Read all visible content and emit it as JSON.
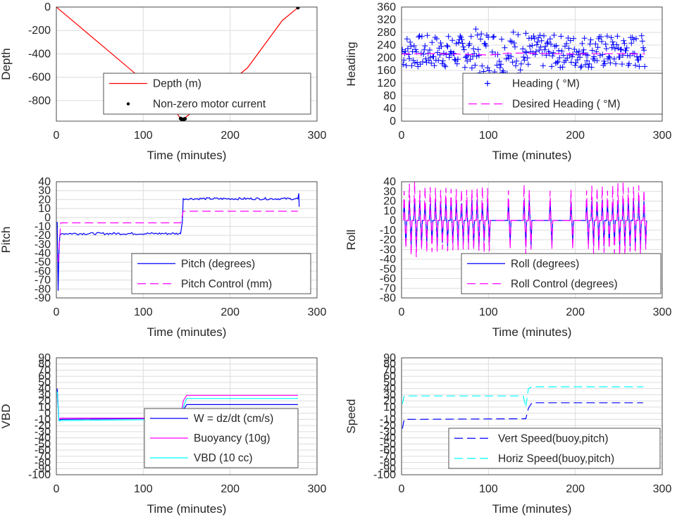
{
  "chart_data": [
    {
      "type": "line",
      "ylabel": "Depth",
      "xlabel": "Time (minutes)",
      "xlim": [
        0,
        300
      ],
      "ylim": [
        -975,
        0
      ],
      "xticks": [
        0,
        100,
        200,
        300
      ],
      "yticks": [
        0,
        -200,
        -400,
        -600,
        -800
      ],
      "legend_position": "bottom-center",
      "series": [
        {
          "name": "Depth (m)",
          "style": "solid",
          "color": "#ff0000",
          "x": [
            0,
            72,
            110,
            130,
            143,
            146,
            150,
            180,
            220,
            260,
            278
          ],
          "y": [
            0,
            -450,
            -690,
            -810,
            -955,
            -960,
            -935,
            -760,
            -520,
            -115,
            -5
          ]
        },
        {
          "name": "Non-zero motor current",
          "style": "dots",
          "color": "#000000",
          "x": [
            143,
            144,
            145,
            146,
            147,
            148,
            278
          ],
          "y": [
            -952,
            -958,
            -960,
            -960,
            -958,
            -955,
            -5
          ]
        }
      ]
    },
    {
      "type": "line",
      "ylabel": "Heading",
      "xlabel": "Time (minutes)",
      "xlim": [
        0,
        300
      ],
      "ylim": [
        0,
        360
      ],
      "xticks": [
        0,
        100,
        200,
        300
      ],
      "yticks": [
        0,
        40,
        80,
        120,
        160,
        200,
        240,
        280,
        320,
        360
      ],
      "legend_position": "bottom-center",
      "series": [
        {
          "name": "Heading (  °M)",
          "style": "plus",
          "color": "#0000ff",
          "x_range": [
            0,
            280
          ],
          "center": 212,
          "spread": [
            -45,
            60
          ]
        },
        {
          "name": "Desired Heading (    °M)",
          "style": "dashed",
          "color": "#ff00ff",
          "x": [
            0,
            40,
            90,
            100,
            120,
            140,
            160,
            200,
            240,
            280
          ],
          "y": [
            212,
            213,
            210,
            208,
            214,
            215,
            213,
            212,
            213,
            212
          ]
        }
      ]
    },
    {
      "type": "line",
      "ylabel": "Pitch",
      "xlabel": "Time (minutes)",
      "xlim": [
        0,
        300
      ],
      "ylim": [
        -90,
        40
      ],
      "xticks": [
        0,
        100,
        200,
        300
      ],
      "yticks": [
        40,
        30,
        20,
        10,
        0,
        -10,
        -20,
        -30,
        -40,
        -50,
        -60,
        -70,
        -80,
        -90
      ],
      "legend_position": "bottom-right",
      "series": [
        {
          "name": "Pitch (degrees)",
          "style": "solid",
          "color": "#0000ff",
          "x": [
            1,
            2,
            3,
            4,
            6,
            143,
            145,
            146,
            278,
            279,
            279.5
          ],
          "y": [
            -5,
            -82,
            -40,
            -20,
            -18,
            -18,
            -5,
            21,
            21,
            27,
            12
          ]
        },
        {
          "name": "Pitch Control (mm)",
          "style": "dashed",
          "color": "#ff00ff",
          "x": [
            2,
            5,
            10,
            143,
            146,
            150,
            278
          ],
          "y": [
            -50,
            -6,
            -6,
            -6,
            7,
            7,
            7
          ]
        }
      ]
    },
    {
      "type": "line",
      "ylabel": "Roll",
      "xlabel": "Time (minutes)",
      "xlim": [
        0,
        300
      ],
      "ylim": [
        -80,
        40
      ],
      "xticks": [
        0,
        100,
        200,
        300
      ],
      "yticks": [
        40,
        30,
        20,
        10,
        0,
        -10,
        -20,
        -30,
        -40,
        -50,
        -60,
        -70,
        -80
      ],
      "legend_position": "bottom-right",
      "series": [
        {
          "name": "Roll (degrees)",
          "style": "solid",
          "color": "#0000ff",
          "oscillation": {
            "x_range": [
              0,
              280
            ],
            "high": 22,
            "low": -28
          }
        },
        {
          "name": "Roll Control (degrees)",
          "style": "dashed",
          "color": "#ff00ff",
          "oscillation": {
            "x_range": [
              0,
              280
            ],
            "high": 40,
            "low": -38
          }
        }
      ]
    },
    {
      "type": "line",
      "ylabel": "VBD",
      "xlabel": "Time (minutes)",
      "xlim": [
        0,
        300
      ],
      "ylim": [
        -100,
        90
      ],
      "xticks": [
        0,
        100,
        200,
        300
      ],
      "yticks": [
        90,
        80,
        70,
        60,
        50,
        40,
        30,
        20,
        10,
        0,
        -10,
        -20,
        -30,
        -40,
        -50,
        -60,
        -70,
        -80,
        -90,
        -100
      ],
      "legend_position": "bottom-right",
      "series": [
        {
          "name": "W = dz/dt (cm/s)",
          "style": "solid",
          "color": "#0000ff",
          "x": [
            1,
            3,
            5,
            143,
            146,
            150,
            278
          ],
          "y": [
            40,
            -12,
            -10,
            -8,
            5,
            14,
            14
          ]
        },
        {
          "name": "Buoyancy (10g)",
          "style": "solid",
          "color": "#ff00ff",
          "x": [
            1,
            3,
            5,
            143,
            146,
            150,
            278
          ],
          "y": [
            30,
            -10,
            -8,
            -8,
            20,
            29,
            29
          ]
        },
        {
          "name": "VBD (10 cc)",
          "style": "solid",
          "color": "#00ffff",
          "x": [
            1,
            3,
            5,
            143,
            146,
            150,
            278
          ],
          "y": [
            35,
            -12,
            -12,
            -10,
            10,
            24,
            24
          ]
        }
      ]
    },
    {
      "type": "line",
      "ylabel": "Speed",
      "xlabel": "Time (minutes)",
      "xlim": [
        0,
        300
      ],
      "ylim": [
        -100,
        90
      ],
      "xticks": [
        0,
        100,
        200,
        300
      ],
      "yticks": [
        90,
        80,
        70,
        60,
        50,
        40,
        30,
        20,
        10,
        0,
        -10,
        -20,
        -30,
        -40,
        -50,
        -60,
        -70,
        -80,
        -90,
        -100
      ],
      "legend_position": "bottom-right",
      "series": [
        {
          "name": "Vert Speed(buoy,pitch)",
          "style": "dashed",
          "color": "#0000ff",
          "x": [
            1,
            3,
            5,
            143,
            146,
            150,
            278
          ],
          "y": [
            -25,
            -10,
            -10,
            -9,
            8,
            17,
            17
          ]
        },
        {
          "name": "Horiz Speed(buoy,pitch)",
          "style": "dashed",
          "color": "#00ffff",
          "x": [
            1,
            3,
            5,
            140,
            143,
            146,
            150,
            278
          ],
          "y": [
            15,
            28,
            28,
            28,
            10,
            40,
            43,
            43
          ]
        }
      ]
    }
  ]
}
